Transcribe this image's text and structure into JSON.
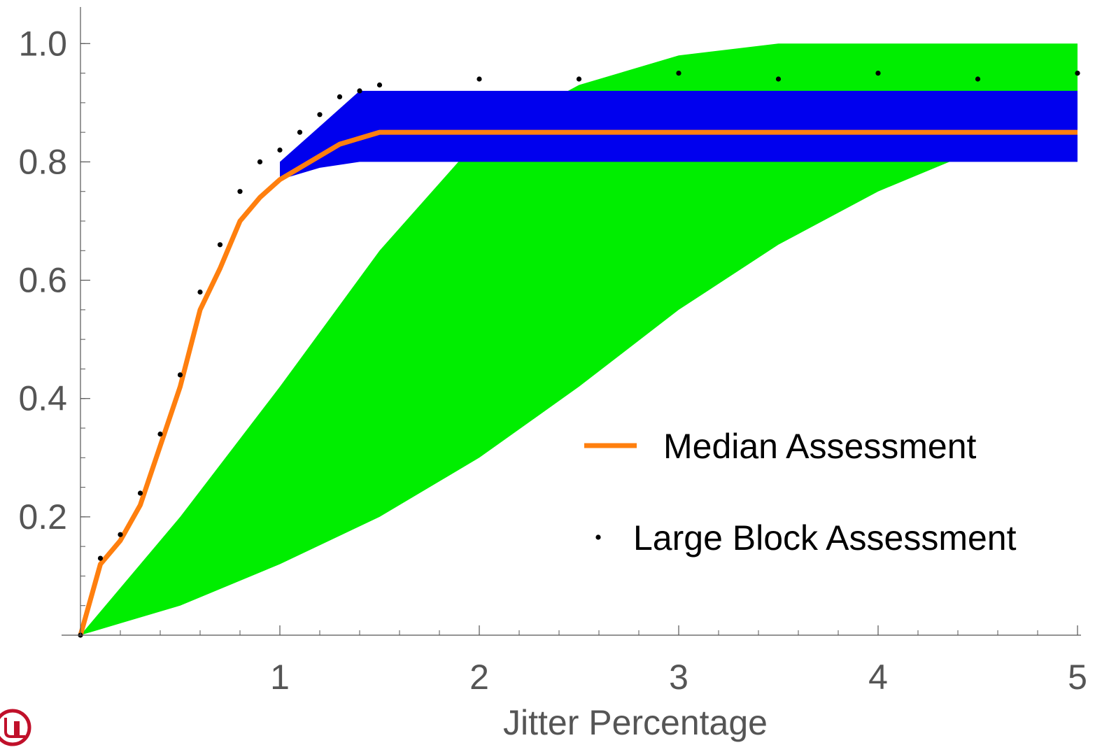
{
  "chart_data": {
    "type": "line",
    "title": "",
    "xlabel": "Jitter Percentage",
    "ylabel": "",
    "xlim": [
      0,
      5
    ],
    "ylim": [
      0,
      1.05
    ],
    "x_ticks": [
      {
        "value": 1,
        "label": "1"
      },
      {
        "value": 2,
        "label": "2"
      },
      {
        "value": 3,
        "label": "3"
      },
      {
        "value": 4,
        "label": "4"
      },
      {
        "value": 5,
        "label": "5"
      }
    ],
    "y_ticks": [
      {
        "value": 0.2,
        "label": "0.2"
      },
      {
        "value": 0.4,
        "label": "0.4"
      },
      {
        "value": 0.6,
        "label": "0.6"
      },
      {
        "value": 0.8,
        "label": "0.8"
      },
      {
        "value": 1.0,
        "label": "1.0"
      }
    ],
    "legend_position": "bottom-right",
    "legend": [
      {
        "label": "Median Assessment",
        "color": "#ff7f0e",
        "marker": "line"
      },
      {
        "label": "Large Block Assessment",
        "color": "#000000",
        "marker": "dot"
      }
    ],
    "colors": {
      "green_band": "#00ee00",
      "blue_band": "#0000ee",
      "median": "#ff7f0e",
      "points": "#000000",
      "axis": "#555555"
    },
    "series": [
      {
        "name": "Median Assessment",
        "x": [
          0,
          0.1,
          0.2,
          0.3,
          0.4,
          0.5,
          0.6,
          0.7,
          0.8,
          0.9,
          1.0,
          1.1,
          1.2,
          1.3,
          1.4,
          1.5,
          2.0,
          2.5,
          3.0,
          3.5,
          4.0,
          4.5,
          5.0
        ],
        "y": [
          0,
          0.12,
          0.16,
          0.22,
          0.32,
          0.42,
          0.55,
          0.62,
          0.7,
          0.74,
          0.77,
          0.79,
          0.81,
          0.83,
          0.84,
          0.85,
          0.85,
          0.85,
          0.85,
          0.85,
          0.85,
          0.85,
          0.85
        ]
      },
      {
        "name": "Large Block Assessment",
        "x": [
          0,
          0.1,
          0.2,
          0.3,
          0.4,
          0.5,
          0.6,
          0.7,
          0.8,
          0.9,
          1.0,
          1.1,
          1.2,
          1.3,
          1.4,
          1.5,
          2.0,
          2.5,
          3.0,
          3.5,
          4.0,
          4.5,
          5.0
        ],
        "y": [
          0,
          0.13,
          0.17,
          0.24,
          0.34,
          0.44,
          0.58,
          0.66,
          0.75,
          0.8,
          0.82,
          0.85,
          0.88,
          0.91,
          0.92,
          0.93,
          0.94,
          0.94,
          0.95,
          0.94,
          0.95,
          0.94,
          0.95
        ]
      }
    ],
    "bands": [
      {
        "color": "#00ee00",
        "x": [
          0,
          0.5,
          1.0,
          1.5,
          2.0,
          2.5,
          3.0,
          3.5,
          4.0,
          4.5,
          5.0
        ],
        "low": [
          0,
          0.05,
          0.12,
          0.2,
          0.3,
          0.42,
          0.55,
          0.66,
          0.75,
          0.82,
          0.85
        ],
        "high": [
          0,
          0.2,
          0.42,
          0.65,
          0.84,
          0.93,
          0.98,
          1.0,
          1.0,
          1.0,
          1.0
        ]
      },
      {
        "color": "#0000ee",
        "x": [
          1.0,
          1.2,
          1.4,
          1.6,
          2.0,
          2.5,
          3.0,
          3.5,
          4.0,
          4.5,
          5.0
        ],
        "low": [
          0.77,
          0.79,
          0.8,
          0.8,
          0.8,
          0.8,
          0.8,
          0.8,
          0.8,
          0.8,
          0.8
        ],
        "high": [
          0.8,
          0.86,
          0.92,
          0.92,
          0.92,
          0.92,
          0.92,
          0.92,
          0.92,
          0.92,
          0.92
        ]
      }
    ]
  }
}
